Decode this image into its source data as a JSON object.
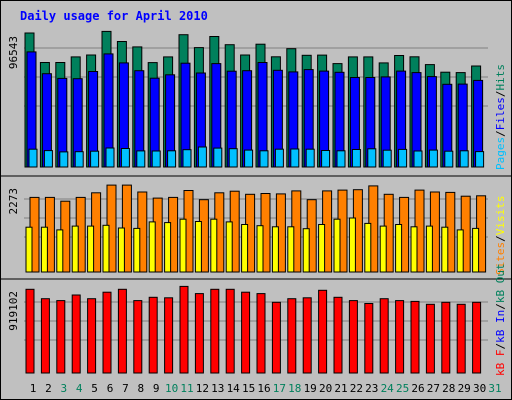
{
  "chart_data": {
    "type": "bar",
    "title": "Daily usage for April 2010",
    "x": [
      "1",
      "2",
      "3",
      "4",
      "5",
      "6",
      "7",
      "8",
      "9",
      "10",
      "11",
      "12",
      "13",
      "14",
      "15",
      "16",
      "17",
      "18",
      "19",
      "20",
      "21",
      "22",
      "23",
      "24",
      "25",
      "26",
      "27",
      "28",
      "29",
      "30",
      "31"
    ],
    "weekend_days": [
      "3",
      "4",
      "10",
      "11",
      "17",
      "18",
      "24",
      "25",
      "31"
    ],
    "panels": [
      {
        "id": "hits-files-pages",
        "ylabel_parts": [
          "Pages",
          "Files",
          "Hits"
        ],
        "ymax_label": "96543",
        "ymax": 96543,
        "series": [
          {
            "name": "Hits",
            "color": "#00805c",
            "values": [
              96543,
              75300,
              75300,
              79300,
              80700,
              97700,
              90400,
              86500,
              75200,
              79300,
              95300,
              86000,
              94000,
              88100,
              80700,
              88500,
              79400,
              85200,
              80500,
              80600,
              74500,
              79300,
              79300,
              75000,
              80300,
              79400,
              73800,
              68300,
              68000,
              72800
            ]
          },
          {
            "name": "Files",
            "color": "#0000ff",
            "values": [
              82900,
              67200,
              63800,
              63600,
              68800,
              81500,
              75000,
              69400,
              64000,
              66400,
              74800,
              67700,
              74500,
              69000,
              69400,
              75300,
              69700,
              68500,
              70200,
              69100,
              68200,
              64500,
              64500,
              64900,
              69100,
              68000,
              65100,
              59600,
              59700,
              62400
            ]
          },
          {
            "name": "Pages",
            "color": "#00c0ff",
            "values": [
              12800,
              11800,
              10900,
              11000,
              11400,
              13700,
              13300,
              11600,
              11500,
              11700,
              12500,
              14400,
              13600,
              13200,
              12200,
              11700,
              12800,
              13000,
              12800,
              11900,
              11700,
              12600,
              13100,
              12100,
              12700,
              11500,
              12200,
              11400,
              11700,
              11100
            ]
          }
        ]
      },
      {
        "id": "visits-sites",
        "ylabel_parts": [
          "Sites",
          "Visits"
        ],
        "ymax_label": "2273",
        "ymax": 2273,
        "series": [
          {
            "name": "Sites",
            "color": "#ff8000",
            "values": [
              1950,
              1950,
              1850,
              1950,
              2070,
              2270,
              2270,
              2090,
              1930,
              1950,
              2130,
              1890,
              2070,
              2110,
              2030,
              2050,
              2040,
              2120,
              1890,
              2120,
              2140,
              2150,
              2250,
              2030,
              1950,
              2140,
              2090,
              2080,
              1980,
              1990
            ]
          },
          {
            "name": "Visits",
            "color": "#ffff00",
            "values": [
              1170,
              1170,
              1100,
              1200,
              1200,
              1220,
              1150,
              1140,
              1310,
              1290,
              1380,
              1320,
              1380,
              1310,
              1240,
              1210,
              1180,
              1180,
              1130,
              1240,
              1380,
              1410,
              1270,
              1200,
              1240,
              1180,
              1200,
              1170,
              1100,
              1140
            ]
          }
        ]
      },
      {
        "id": "kbytes",
        "ylabel_parts": [
          "kB F",
          "kB In",
          "kB Out"
        ],
        "ymax_label": "919102",
        "ymax": 919102,
        "series": [
          {
            "name": "kB F",
            "color": "#ff0000",
            "values": [
              905000,
              803000,
              783000,
              843000,
              803000,
              874000,
              905000,
              783000,
              819000,
              813000,
              936000,
              859000,
              905000,
              905000,
              874000,
              859000,
              764000,
              803000,
              813000,
              894000,
              819000,
              783000,
              752000,
              803000,
              783000,
              774000,
              743000,
              764000,
              743000,
              764000
            ]
          }
        ]
      }
    ]
  },
  "colors": {
    "background": "#c0c0c0",
    "title": "#0000ff",
    "weekday_label": "#000000",
    "weekend_label": "#00805c",
    "hits_label": "#00805c",
    "files_label": "#0000ff",
    "pages_label": "#00c0ff",
    "sites_label": "#ff8000",
    "visits_label": "#ffff00",
    "kbin_label": "#0000ff",
    "kbout_label": "#00805c",
    "kbf_label": "#ff0000",
    "separator": "#000000"
  }
}
